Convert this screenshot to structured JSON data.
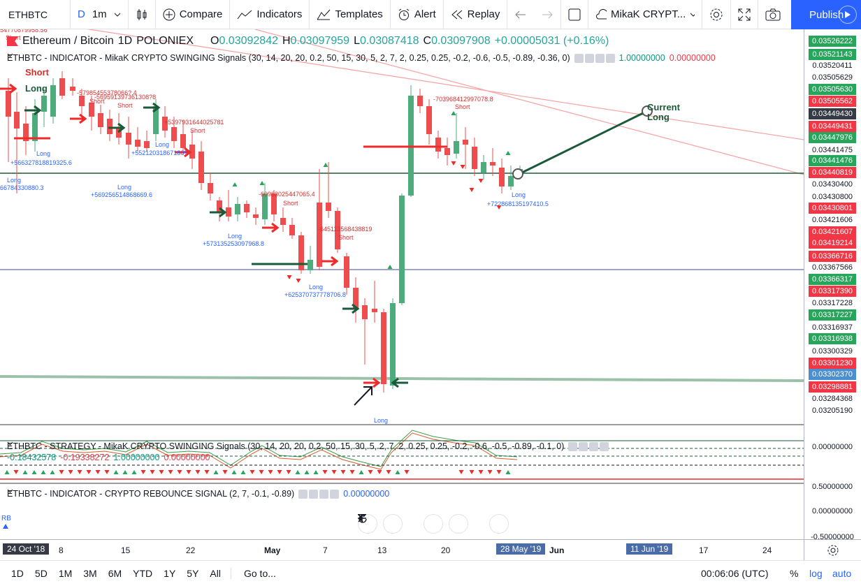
{
  "toolbar": {
    "symbol": "ETHBTC",
    "interval_type": "D",
    "interval": "1m",
    "compare": "Compare",
    "indicators": "Indicators",
    "templates": "Templates",
    "alert": "Alert",
    "replay": "Replay",
    "layout_name": "MikaK CRYPT...",
    "publish": "Publish"
  },
  "legend": {
    "title": "Ethereum / Bitcoin",
    "resolution": "1D",
    "exchange": "POLONIEX",
    "o_label": "O",
    "o": "0.03092842",
    "h_label": "H",
    "h": "0.03097959",
    "l_label": "L",
    "l": "0.03087418",
    "c_label": "C",
    "c": "0.03097908",
    "change": "+0.00005031 (+0.16%)"
  },
  "indicator1": {
    "label": "ETHBTC - INDICATOR - MikaK CRYPTO SWINGING Signals (30, 14, 20, 20, 0.2, 50, 15, 30, 5, 2, 7, 2, 0.25, 0.25, -0.2, -0.6, -0.5, -0.89, -0.36, 0)",
    "v1": "1.00000000",
    "v2": "0.00000000"
  },
  "indicator2": {
    "label": "ETHBTC - STRATEGY - MikaK CRYPTO SWINGING Signals (30, 14, 20, 20, 0.2, 50, 15, 30, 5, 2, 7, 2, 0.25, 0.25, -0.2, -0.6, -0.5, -0.89, -0.1, 0)",
    "v1": "-0.18432578",
    "v2": "-0.19338272",
    "v3": "1.00000000",
    "v4": "0.00000000"
  },
  "indicator3": {
    "label": "ETHBTC - INDICATOR - CRYPTO REBOUNCE SIGNAL (2, 7, -0.1, -0.89)",
    "v1": "0.00000000",
    "rb": "RB"
  },
  "annotations": {
    "top_left_value": "54770879958.56",
    "short": "Short",
    "long": "Long",
    "current_long_1": "Current",
    "current_long_2": "Long",
    "v1": "+566327818819325.6",
    "v2": "66784330880.3",
    "v3": "+569256514868669.6",
    "v4": "-57985455378066?.4",
    "v5": "-569591397361308?8",
    "v6": "+55212031867180?",
    "v7": "+5397931644025781",
    "v8": "+573135253097968.8",
    "v9": "-60983025447065.4",
    "v10": "-645113568438819",
    "v11": "+625370737778706.8",
    "v12": "-703968412997078.8",
    "v13": "+722868135197410.5"
  },
  "price_scale": [
    {
      "text": "0.03526222",
      "color": "#26a65b"
    },
    {
      "text": "0.03521143",
      "color": "#26a65b"
    },
    {
      "text": "0.03520411",
      "color": "#ffffff"
    },
    {
      "text": "0.03505629",
      "color": "#ffffff"
    },
    {
      "text": "0.03505630",
      "color": "#26a65b"
    },
    {
      "text": "0.03505562",
      "color": "#f23645"
    },
    {
      "text": "0.03449430",
      "color": "#363a45"
    },
    {
      "text": "0.03449431",
      "color": "#f23645"
    },
    {
      "text": "0.03447976",
      "color": "#26a65b"
    },
    {
      "text": "0.03441475",
      "color": "#ffffff"
    },
    {
      "text": "0.03441476",
      "color": "#26a65b"
    },
    {
      "text": "0.03440819",
      "color": "#f23645"
    },
    {
      "text": "0.03430400",
      "color": "#ffffff"
    },
    {
      "text": "0.03430800",
      "color": "#ffffff"
    },
    {
      "text": "0.03430801",
      "color": "#f23645"
    },
    {
      "text": "0.03421606",
      "color": "#ffffff"
    },
    {
      "text": "0.03421607",
      "color": "#f23645"
    },
    {
      "text": "0.03419214",
      "color": "#f23645"
    },
    {
      "text": "0.03366716",
      "color": "#f23645"
    },
    {
      "text": "0.03367566",
      "color": "#ffffff"
    },
    {
      "text": "0.03366317",
      "color": "#26a65b"
    },
    {
      "text": "0.03317390",
      "color": "#f23645"
    },
    {
      "text": "0.03317228",
      "color": "#ffffff"
    },
    {
      "text": "0.03317227",
      "color": "#26a65b"
    },
    {
      "text": "0.03316937",
      "color": "#ffffff"
    },
    {
      "text": "0.03316938",
      "color": "#26a65b"
    },
    {
      "text": "0.03300329",
      "color": "#ffffff"
    },
    {
      "text": "0.03301230",
      "color": "#f23645"
    },
    {
      "text": "0.03302370",
      "color": "#4a8fd0"
    },
    {
      "text": "0.03298881",
      "color": "#f23645"
    },
    {
      "text": "0.03284368",
      "color": "#ffffff"
    },
    {
      "text": "0.03205190",
      "color": "#ffffff"
    }
  ],
  "pane_scale": {
    "a": "0.00000000",
    "b": "0.50000000",
    "c": "0.00000000",
    "d": "-0.50000000"
  },
  "time_scale": {
    "first": "24 Oct '18",
    "labels": [
      "8",
      "15",
      "22",
      "May",
      "7",
      "13",
      "20",
      "Jun",
      "17",
      "24"
    ],
    "hl1": "28 May '19",
    "hl2": "11 Jun '19"
  },
  "bottom": {
    "ranges": [
      "1D",
      "5D",
      "1M",
      "3M",
      "6M",
      "YTD",
      "1Y",
      "5Y",
      "All"
    ],
    "goto": "Go to...",
    "clock": "00:06:06 (UTC)",
    "pct": "%",
    "log": "log",
    "auto": "auto"
  }
}
